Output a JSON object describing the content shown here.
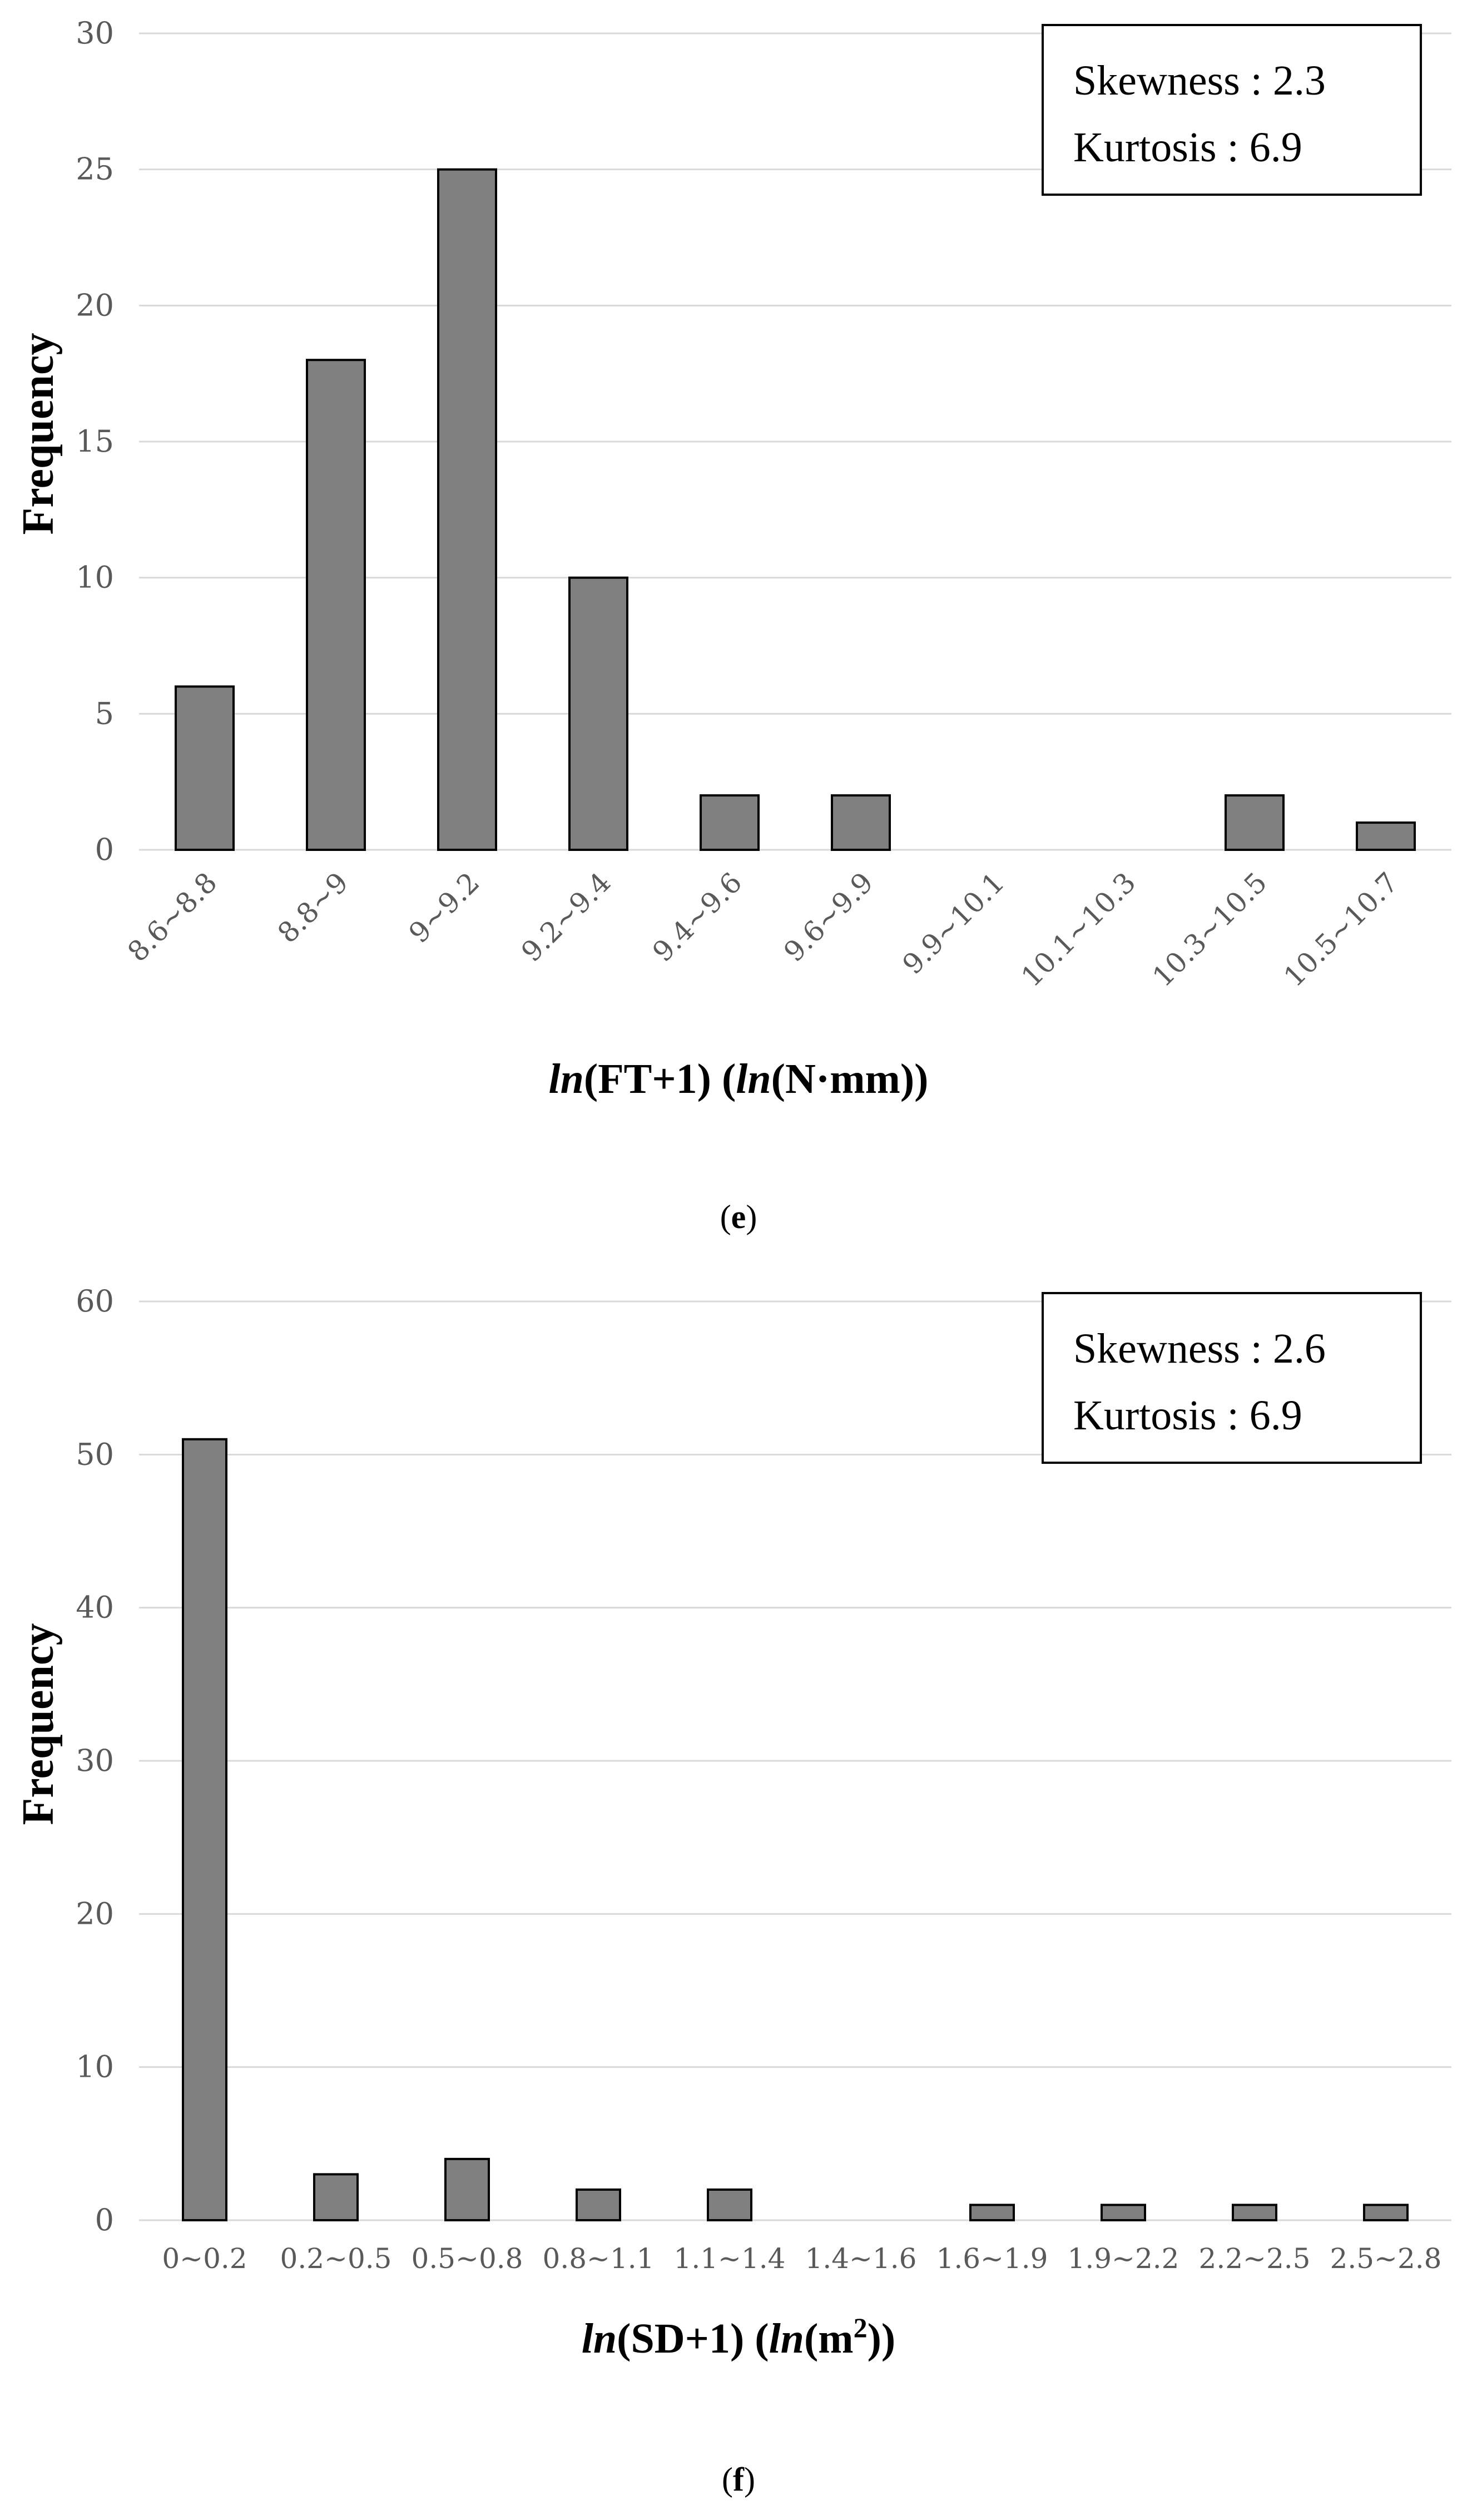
{
  "chart_data": [
    {
      "id": "e",
      "type": "bar",
      "title": "",
      "caption": "e",
      "ylabel": "Frequency",
      "xlabel": {
        "parts": [
          {
            "text": "ln",
            "italic": true
          },
          {
            "text": "(FT+1) ("
          },
          {
            "text": "ln",
            "italic": true
          },
          {
            "text": "(N·mm))"
          }
        ]
      },
      "ylim": [
        0,
        30
      ],
      "yticks": [
        0,
        5,
        10,
        15,
        20,
        25,
        30
      ],
      "categories": [
        "8.6~8.8",
        "8.8~9",
        "9~9.2",
        "9.2~9.4",
        "9.4~9.6",
        "9.6~9.9",
        "9.9~10.1",
        "10.1~10.3",
        "10.3~10.5",
        "10.5~10.7"
      ],
      "values": [
        6,
        18,
        25,
        10,
        2,
        2,
        0,
        0,
        2,
        1
      ],
      "xtick_rotation": "rotated",
      "grid": true,
      "stats": {
        "skewness_label": "Skewness : 2.3",
        "kurtosis_label": "Kurtosis : 6.9"
      },
      "stats_position": "top-right"
    },
    {
      "id": "f",
      "type": "bar",
      "title": "",
      "caption": "f",
      "ylabel": "Frequency",
      "xlabel": {
        "parts": [
          {
            "text": "ln",
            "italic": true
          },
          {
            "text": "(SD+1) ("
          },
          {
            "text": "ln",
            "italic": true
          },
          {
            "text": "(m"
          },
          {
            "text": "2",
            "sup": true
          },
          {
            "text": "))"
          }
        ]
      },
      "ylim": [
        0,
        60
      ],
      "yticks": [
        0,
        10,
        20,
        30,
        40,
        50,
        60
      ],
      "categories": [
        "0~0.2",
        "0.2~0.5",
        "0.5~0.8",
        "0.8~1.1",
        "1.1~1.4",
        "1.4~1.6",
        "1.6~1.9",
        "1.9~2.2",
        "2.2~2.5",
        "2.5~2.8"
      ],
      "values": [
        51,
        3,
        4,
        2,
        2,
        0,
        1,
        1,
        1,
        1
      ],
      "xtick_rotation": "horizontal",
      "grid": true,
      "stats": {
        "skewness_label": "Skewness : 2.6",
        "kurtosis_label": "Kurtosis : 6.9"
      },
      "stats_position": "top-right"
    }
  ]
}
